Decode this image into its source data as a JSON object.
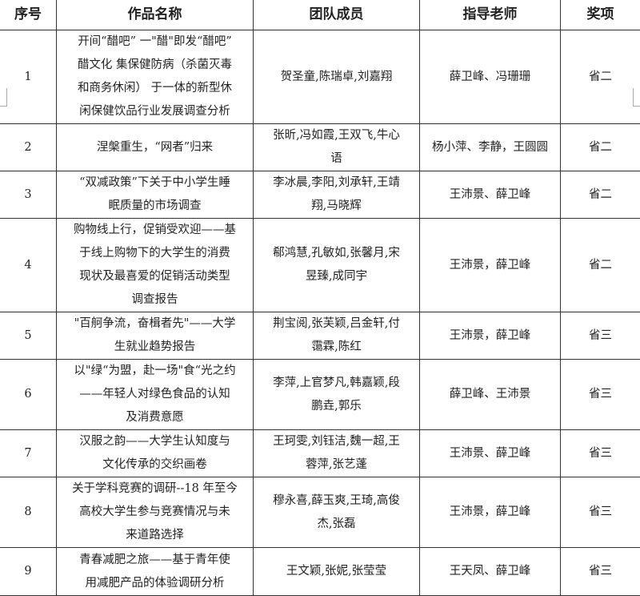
{
  "headers": [
    "序号",
    "作品名称",
    "团队成员",
    "指导老师",
    "奖项"
  ],
  "rows": [
    {
      "no": "1",
      "title": [
        "开间“醋吧” 一\"醋\"即发“醋吧”",
        "醋文化 集保健防病（杀菌灭毒",
        "和商务休闲） 于一体的新型休",
        "闲保健饮品行业发展调查分析"
      ],
      "members": [
        "贺圣童,陈瑞卓,刘嘉翔"
      ],
      "advisors": "薛卫峰、冯珊珊",
      "award": "省二"
    },
    {
      "no": "2",
      "title": [
        "涅槃重生，“网者”归来"
      ],
      "members": [
        "张昕,冯如霞,王双飞,牛心",
        "语"
      ],
      "advisors": "杨小萍、李静，王圆圆",
      "award": "省二"
    },
    {
      "no": "3",
      "title": [
        "“双减政策”下关于中小学生睡",
        "眠质量的市场调查"
      ],
      "members": [
        "李冰晨,李阳,刘承轩,王靖",
        "翔,马晓辉"
      ],
      "advisors": "王沛景、薛卫峰",
      "award": "省二"
    },
    {
      "no": "4",
      "title": [
        "购物线上行，促销受欢迎——基",
        "于线上购物下的大学生的消费",
        "现状及最喜爱的促销活动类型",
        "调查报告"
      ],
      "members": [
        "郗鸿慧,孔敏如,张馨月,宋",
        "昱臻,成同宇"
      ],
      "advisors": "王沛景，薛卫峰",
      "award": "省二"
    },
    {
      "no": "5",
      "title": [
        "\"百舸争流，奋楫者先\"——大学",
        "生就业趋势报告"
      ],
      "members": [
        "荆宝阅,张芙颖,吕金轩,付",
        "霭霖,陈红"
      ],
      "advisors": "王沛景，薛卫峰",
      "award": "省三"
    },
    {
      "no": "6",
      "title": [
        "以\"绿“为盟，赴一场\"食“光之约",
        "——年轻人对绿色食品的认知",
        "及消费意愿"
      ],
      "members": [
        "李萍,上官梦凡,韩嘉颖,段",
        "鹏垚,郭乐"
      ],
      "advisors": "薛卫峰、王沛景",
      "award": "省三"
    },
    {
      "no": "7",
      "title": [
        "汉服之韵——大学生认知度与",
        "文化传承的交织画卷"
      ],
      "members": [
        "王珂雯,刘钰洁,魏一超,王",
        "蓉萍,张艺蓬"
      ],
      "advisors": "王沛景、薛卫峰",
      "award": "省三"
    },
    {
      "no": "8",
      "title": [
        "关于学科竞赛的调研--18 年至今",
        "高校大学生参与竞赛情况与未",
        "来道路选择"
      ],
      "members": [
        "穆永喜,薛玉爽,王琦,高俊",
        "杰,张磊"
      ],
      "advisors": "王沛景，薛卫峰",
      "award": "省三"
    },
    {
      "no": "9",
      "title": [
        "青春减肥之旅——基于青年使",
        "用减肥产品的体验调研分析"
      ],
      "members": [
        "王文颖,张妮,张莹莹"
      ],
      "advisors": "王天凤、薛卫峰",
      "award": "省三"
    }
  ]
}
